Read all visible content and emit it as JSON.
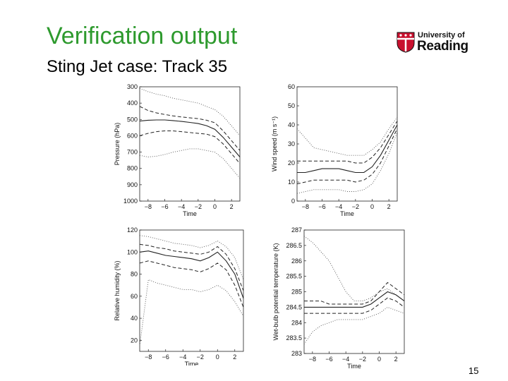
{
  "slide": {
    "title": "Verification output",
    "subtitle": "Sting Jet case: Track 35",
    "page_number": "15"
  },
  "logo": {
    "line1": "University of",
    "line2": "Reading",
    "colors": {
      "shield_red": "#c8102e",
      "shield_white": "#ffffff",
      "text": "#111111"
    }
  },
  "colors": {
    "title": "#2e9a2e",
    "lines": "#222222",
    "dotted": "#555555"
  },
  "chart_data": [
    {
      "type": "line",
      "xlabel": "Time",
      "ylabel": "Pressure (hPa)",
      "xlim": [
        -9,
        3
      ],
      "ylim": [
        300,
        1000
      ],
      "y_inverted": true,
      "xticks": [
        -8,
        -6,
        -4,
        -2,
        0,
        2
      ],
      "yticks": [
        300,
        400,
        500,
        600,
        700,
        800,
        900,
        1000
      ],
      "x": [
        -9,
        -8,
        -7,
        -6,
        -5,
        -4,
        -3,
        -2,
        -1,
        0,
        1,
        2,
        3
      ],
      "series": [
        {
          "style": "dotted",
          "values": [
            310,
            330,
            345,
            355,
            370,
            380,
            390,
            400,
            420,
            440,
            480,
            540,
            600
          ]
        },
        {
          "style": "dashed",
          "values": [
            420,
            445,
            460,
            470,
            478,
            485,
            490,
            495,
            505,
            520,
            570,
            630,
            690
          ]
        },
        {
          "style": "solid",
          "values": [
            510,
            505,
            503,
            503,
            507,
            512,
            518,
            525,
            538,
            560,
            610,
            670,
            730
          ]
        },
        {
          "style": "dashed",
          "values": [
            600,
            585,
            575,
            570,
            570,
            575,
            580,
            585,
            590,
            605,
            650,
            710,
            770
          ]
        },
        {
          "style": "dotted",
          "values": [
            720,
            730,
            725,
            715,
            700,
            690,
            680,
            680,
            690,
            700,
            740,
            800,
            860
          ]
        }
      ]
    },
    {
      "type": "line",
      "xlabel": "Time",
      "ylabel": "Wind speed (m s⁻¹)",
      "xlim": [
        -9,
        3
      ],
      "ylim": [
        0,
        60
      ],
      "xticks": [
        -8,
        -6,
        -4,
        -2,
        0,
        2
      ],
      "yticks": [
        0,
        10,
        20,
        30,
        40,
        50,
        60
      ],
      "x": [
        -9,
        -8,
        -7,
        -6,
        -5,
        -4,
        -3,
        -2,
        -1,
        0,
        1,
        2,
        3
      ],
      "series": [
        {
          "style": "dotted",
          "values": [
            38,
            33,
            28,
            27,
            26,
            25,
            24,
            24,
            24,
            27,
            31,
            38,
            44
          ]
        },
        {
          "style": "dashed",
          "values": [
            21,
            21,
            21,
            21,
            21,
            21,
            21,
            20,
            20,
            23,
            28,
            35,
            42
          ]
        },
        {
          "style": "solid",
          "values": [
            15,
            15,
            16,
            17,
            17,
            17,
            16,
            15,
            15,
            18,
            24,
            32,
            40
          ]
        },
        {
          "style": "dashed",
          "values": [
            9,
            10,
            11,
            11,
            11,
            11,
            11,
            10,
            11,
            14,
            20,
            29,
            38
          ]
        },
        {
          "style": "dotted",
          "values": [
            4,
            5,
            6,
            6,
            6,
            6,
            5,
            5,
            6,
            9,
            16,
            25,
            36
          ]
        }
      ]
    },
    {
      "type": "line",
      "xlabel": "Time",
      "ylabel": "Relative humidity (%)",
      "xlim": [
        -9,
        3
      ],
      "ylim": [
        10,
        120
      ],
      "xticks": [
        -8,
        -6,
        -4,
        -2,
        0,
        2
      ],
      "yticks": [
        20,
        40,
        60,
        80,
        100,
        120
      ],
      "x": [
        -9,
        -8,
        -7,
        -6,
        -5,
        -4,
        -3,
        -2,
        -1,
        0,
        1,
        2,
        3
      ],
      "series": [
        {
          "style": "dotted",
          "values": [
            115,
            114,
            112,
            110,
            108,
            107,
            106,
            104,
            106,
            110,
            105,
            95,
            75
          ]
        },
        {
          "style": "dashed",
          "values": [
            107,
            106,
            104,
            103,
            101,
            100,
            99,
            98,
            100,
            105,
            98,
            85,
            65
          ]
        },
        {
          "style": "solid",
          "values": [
            100,
            101,
            99,
            97,
            96,
            95,
            94,
            92,
            95,
            100,
            92,
            80,
            58
          ]
        },
        {
          "style": "dashed",
          "values": [
            90,
            92,
            90,
            88,
            86,
            85,
            84,
            82,
            85,
            90,
            84,
            70,
            50
          ]
        },
        {
          "style": "dotted",
          "values": [
            15,
            75,
            72,
            70,
            68,
            66,
            66,
            64,
            66,
            70,
            65,
            55,
            42
          ]
        }
      ]
    },
    {
      "type": "line",
      "xlabel": "Time",
      "ylabel": "Wet-bulb potential temperature (K)",
      "xlim": [
        -9,
        3
      ],
      "ylim": [
        283,
        287
      ],
      "xticks": [
        -8,
        -6,
        -4,
        -2,
        0,
        2
      ],
      "yticks": [
        283,
        283.5,
        284,
        284.5,
        285,
        285.5,
        286,
        286.5,
        287
      ],
      "ytick_labels": [
        "283",
        "283.5",
        "284",
        "284.5",
        "285",
        "285.5",
        "286",
        "286.5",
        "287"
      ],
      "x": [
        -9,
        -8,
        -7,
        -6,
        -5,
        -4,
        -3,
        -2,
        -1,
        0,
        1,
        2,
        3
      ],
      "series": [
        {
          "style": "dotted",
          "values": [
            286.8,
            286.6,
            286.3,
            286.0,
            285.5,
            285.0,
            284.7,
            284.7,
            284.8,
            285.0,
            285.1,
            284.9,
            284.7
          ]
        },
        {
          "style": "dashed",
          "values": [
            284.7,
            284.7,
            284.7,
            284.6,
            284.6,
            284.6,
            284.6,
            284.6,
            284.7,
            285.0,
            285.3,
            285.1,
            284.9
          ]
        },
        {
          "style": "solid",
          "values": [
            284.5,
            284.5,
            284.5,
            284.5,
            284.5,
            284.5,
            284.5,
            284.5,
            284.6,
            284.8,
            285.0,
            284.9,
            284.7
          ]
        },
        {
          "style": "dashed",
          "values": [
            284.3,
            284.3,
            284.3,
            284.3,
            284.3,
            284.3,
            284.3,
            284.3,
            284.4,
            284.6,
            284.8,
            284.7,
            284.5
          ]
        },
        {
          "style": "dotted",
          "values": [
            283.3,
            283.7,
            283.9,
            284.0,
            284.1,
            284.1,
            284.1,
            284.1,
            284.2,
            284.3,
            284.5,
            284.4,
            284.3
          ]
        }
      ]
    }
  ]
}
